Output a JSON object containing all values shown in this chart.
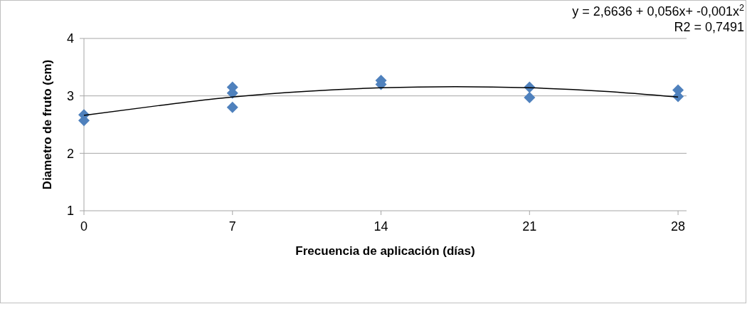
{
  "chart_data": {
    "type": "scatter",
    "xlabel": "Frecuencia de aplicación (días)",
    "ylabel": "Diametro de fruto (cm)",
    "xlim": [
      0,
      28.4
    ],
    "xticks": [
      0,
      7,
      14,
      21,
      28
    ],
    "ylim": [
      1,
      4
    ],
    "yticks": [
      1,
      2,
      3,
      4
    ],
    "grid": "y",
    "marker": "diamond",
    "series": [
      {
        "color": "#4f81bd",
        "x": [
          0,
          0,
          7,
          7,
          7,
          14,
          14,
          21,
          21,
          28,
          28
        ],
        "values": [
          2.67,
          2.57,
          3.15,
          3.05,
          2.8,
          3.27,
          3.2,
          3.15,
          2.97,
          3.1,
          2.99
        ]
      },
      {
        "type": "line",
        "color": "#000000",
        "marker": "none",
        "x": [
          0,
          3.5,
          7,
          10.5,
          14,
          17.5,
          21,
          24.5,
          28
        ],
        "values": [
          2.66,
          2.83,
          2.98,
          3.08,
          3.14,
          3.16,
          3.14,
          3.08,
          2.98
        ]
      }
    ],
    "annotations": [
      "y = 2,6636 + 0,056x+  -0,001x$^{2}$",
      "R2 = 0,7491"
    ]
  }
}
